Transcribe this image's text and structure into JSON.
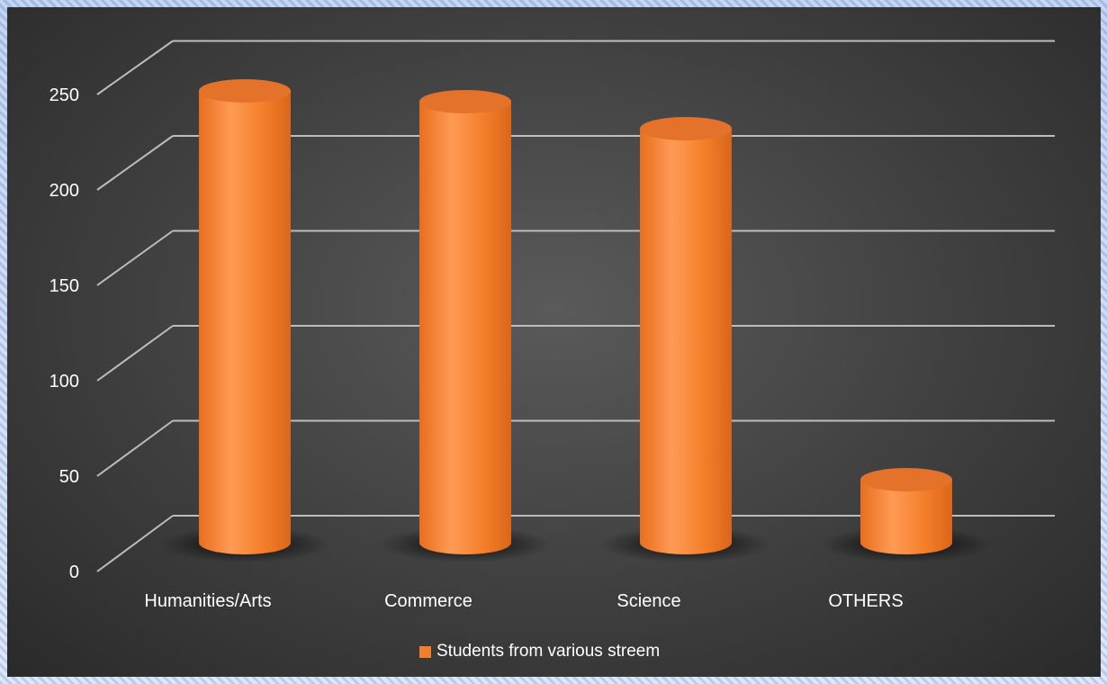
{
  "chart_data": {
    "type": "bar",
    "title": "",
    "xlabel": "",
    "ylabel": "",
    "categories": [
      "Humanities/Arts",
      "Commerce",
      "Science",
      "OTHERS"
    ],
    "series": [
      {
        "name": "Students from various streem",
        "values": [
          251,
          245,
          230,
          35
        ]
      }
    ],
    "ylim": [
      0,
      250
    ],
    "yticks": [
      "0",
      "50",
      "100",
      "150",
      "200",
      "250"
    ],
    "grid": true,
    "legend_position": "bottom",
    "colors": {
      "bar": "#f47f2a",
      "bar_top": "#e5722a",
      "gridline": "#bdbdbd",
      "text": "#ffffff",
      "background": "#404040"
    }
  }
}
